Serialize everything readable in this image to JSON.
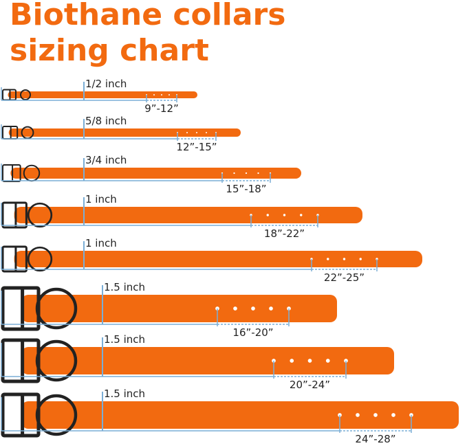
{
  "header": {
    "title_lines": [
      "Biothane collars",
      "sizing chart"
    ]
  },
  "collars": [
    {
      "width": "1/2 inch",
      "size": "9”-12”"
    },
    {
      "width": "5/8 inch",
      "size": "12”-15”"
    },
    {
      "width": "3/4 inch",
      "size": "15”-18”"
    },
    {
      "width": "1 inch",
      "size": "18”-22”"
    },
    {
      "width": "1 inch",
      "size": "22”-25”"
    },
    {
      "width": "1.5 inch",
      "size": "16”-20”"
    },
    {
      "width": "1.5 inch",
      "size": "20”-24”"
    },
    {
      "width": "1.5 inch",
      "size": "24”-28”"
    }
  ]
}
